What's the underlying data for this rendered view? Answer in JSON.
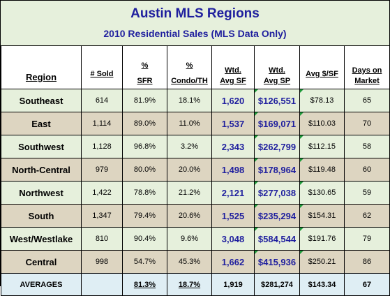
{
  "title": "Austin MLS Regions",
  "subtitle": "2010 Residential Sales (MLS Data Only)",
  "headers": {
    "region": "Region",
    "sold": "# Sold",
    "sfr_sym": "%",
    "sfr": "SFR",
    "condo_sym": "%",
    "condo": "Condo/TH",
    "wtd_sf_1": "Wtd.",
    "wtd_sf_2": "Avg SF",
    "wtd_sp_1": "Wtd.",
    "wtd_sp_2": "Avg SP",
    "avg_psf": "Avg $/SF",
    "dom_1": "Days on",
    "dom_2": "Market"
  },
  "rows": [
    {
      "region": "Southeast",
      "sold": "614",
      "sfr": "81.9%",
      "condo": "18.1%",
      "sf": "1,620",
      "sp": "$126,551",
      "psf": "$78.13",
      "dom": "65"
    },
    {
      "region": "East",
      "sold": "1,114",
      "sfr": "89.0%",
      "condo": "11.0%",
      "sf": "1,537",
      "sp": "$169,071",
      "psf": "$110.03",
      "dom": "70"
    },
    {
      "region": "Southwest",
      "sold": "1,128",
      "sfr": "96.8%",
      "condo": "3.2%",
      "sf": "2,343",
      "sp": "$262,799",
      "psf": "$112.15",
      "dom": "58"
    },
    {
      "region": "North-Central",
      "sold": "979",
      "sfr": "80.0%",
      "condo": "20.0%",
      "sf": "1,498",
      "sp": "$178,964",
      "psf": "$119.48",
      "dom": "60"
    },
    {
      "region": "Northwest",
      "sold": "1,422",
      "sfr": "78.8%",
      "condo": "21.2%",
      "sf": "2,121",
      "sp": "$277,038",
      "psf": "$130.65",
      "dom": "59"
    },
    {
      "region": "South",
      "sold": "1,347",
      "sfr": "79.4%",
      "condo": "20.6%",
      "sf": "1,525",
      "sp": "$235,294",
      "psf": "$154.31",
      "dom": "62"
    },
    {
      "region": "West/Westlake",
      "sold": "810",
      "sfr": "90.4%",
      "condo": "9.6%",
      "sf": "3,048",
      "sp": "$584,544",
      "psf": "$191.76",
      "dom": "79"
    },
    {
      "region": "Central",
      "sold": "998",
      "sfr": "54.7%",
      "condo": "45.3%",
      "sf": "1,662",
      "sp": "$415,936",
      "psf": "$250.21",
      "dom": "86"
    }
  ],
  "averages": {
    "label": "AVERAGES",
    "sold": "",
    "sfr": "81.3%",
    "condo": "18.7%",
    "sf": "1,919",
    "sp": "$281,274",
    "psf": "$143.34",
    "dom": "67"
  },
  "colors": {
    "title_blue": "#1f1f9e",
    "row_light": "#e6f0dc",
    "row_dark": "#ddd5c1",
    "footer": "#dfeef4",
    "comment_marker": "#1e9b3a"
  }
}
